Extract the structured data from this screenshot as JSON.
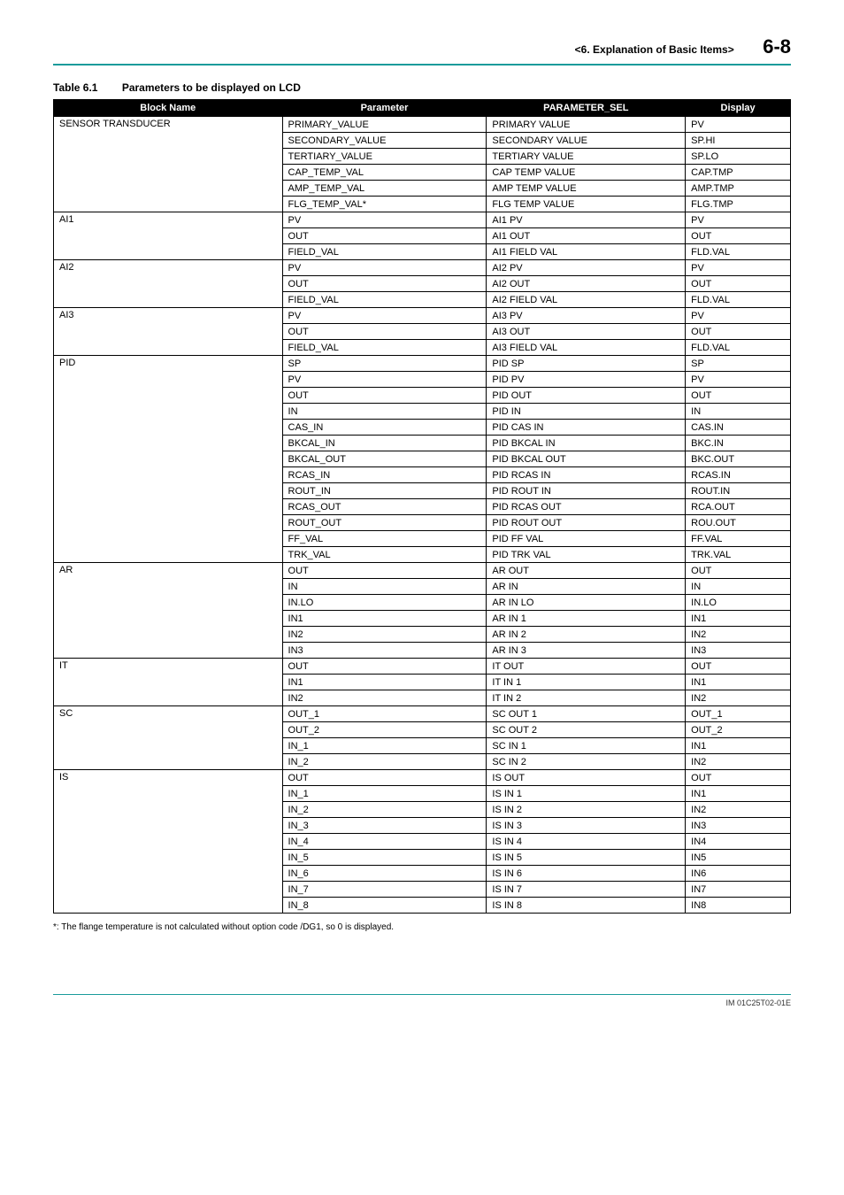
{
  "header": {
    "chapter": "<6.  Explanation of Basic Items>",
    "pageno": "6-8"
  },
  "caption": {
    "number": "Table 6.1",
    "title": "Parameters to be displayed on LCD"
  },
  "columns": [
    "Block Name",
    "Parameter",
    "PARAMETER_SEL",
    "Display"
  ],
  "rows": [
    [
      "SENSOR TRANSDUCER",
      "PRIMARY_VALUE",
      "PRIMARY VALUE",
      "PV"
    ],
    [
      "",
      "SECONDARY_VALUE",
      "SECONDARY VALUE",
      "SP.HI"
    ],
    [
      "",
      "TERTIARY_VALUE",
      "TERTIARY VALUE",
      "SP.LO"
    ],
    [
      "",
      "CAP_TEMP_VAL",
      "CAP TEMP VALUE",
      "CAP.TMP"
    ],
    [
      "",
      "AMP_TEMP_VAL",
      "AMP TEMP VALUE",
      "AMP.TMP"
    ],
    [
      "",
      "FLG_TEMP_VAL*",
      "FLG TEMP VALUE",
      "FLG.TMP"
    ],
    [
      "AI1",
      "PV",
      "AI1 PV",
      "PV"
    ],
    [
      "",
      "OUT",
      "AI1 OUT",
      "OUT"
    ],
    [
      "",
      "FIELD_VAL",
      "AI1 FIELD VAL",
      "FLD.VAL"
    ],
    [
      "AI2",
      "PV",
      "AI2 PV",
      "PV"
    ],
    [
      "",
      "OUT",
      "AI2 OUT",
      "OUT"
    ],
    [
      "",
      "FIELD_VAL",
      "AI2 FIELD VAL",
      "FLD.VAL"
    ],
    [
      "AI3",
      "PV",
      "AI3 PV",
      "PV"
    ],
    [
      "",
      "OUT",
      "AI3 OUT",
      "OUT"
    ],
    [
      "",
      "FIELD_VAL",
      "AI3 FIELD VAL",
      "FLD.VAL"
    ],
    [
      "PID",
      "SP",
      "PID SP",
      "SP"
    ],
    [
      "",
      "PV",
      "PID PV",
      "PV"
    ],
    [
      "",
      "OUT",
      "PID OUT",
      "OUT"
    ],
    [
      "",
      "IN",
      "PID IN",
      "IN"
    ],
    [
      "",
      "CAS_IN",
      "PID CAS IN",
      "CAS.IN"
    ],
    [
      "",
      "BKCAL_IN",
      "PID BKCAL IN",
      "BKC.IN"
    ],
    [
      "",
      "BKCAL_OUT",
      "PID BKCAL OUT",
      "BKC.OUT"
    ],
    [
      "",
      "RCAS_IN",
      "PID RCAS IN",
      "RCAS.IN"
    ],
    [
      "",
      "ROUT_IN",
      "PID ROUT IN",
      "ROUT.IN"
    ],
    [
      "",
      "RCAS_OUT",
      "PID RCAS OUT",
      "RCA.OUT"
    ],
    [
      "",
      "ROUT_OUT",
      "PID ROUT OUT",
      "ROU.OUT"
    ],
    [
      "",
      "FF_VAL",
      "PID FF VAL",
      "FF.VAL"
    ],
    [
      "",
      "TRK_VAL",
      "PID TRK VAL",
      "TRK.VAL"
    ],
    [
      "AR",
      "OUT",
      "AR OUT",
      "OUT"
    ],
    [
      "",
      "IN",
      "AR IN",
      "IN"
    ],
    [
      "",
      "IN.LO",
      "AR IN LO",
      "IN.LO"
    ],
    [
      "",
      "IN1",
      "AR IN 1",
      "IN1"
    ],
    [
      "",
      "IN2",
      "AR IN 2",
      "IN2"
    ],
    [
      "",
      "IN3",
      "AR IN 3",
      "IN3"
    ],
    [
      "IT",
      "OUT",
      "IT OUT",
      "OUT"
    ],
    [
      "",
      "IN1",
      "IT IN 1",
      "IN1"
    ],
    [
      "",
      "IN2",
      "IT IN 2",
      "IN2"
    ],
    [
      "SC",
      "OUT_1",
      "SC OUT 1",
      "OUT_1"
    ],
    [
      "",
      "OUT_2",
      "SC OUT 2",
      "OUT_2"
    ],
    [
      "",
      "IN_1",
      "SC IN 1",
      "IN1"
    ],
    [
      "",
      "IN_2",
      "SC IN 2",
      "IN2"
    ],
    [
      "IS",
      "OUT",
      "IS OUT",
      "OUT"
    ],
    [
      "",
      "IN_1",
      "IS IN 1",
      "IN1"
    ],
    [
      "",
      "IN_2",
      "IS IN 2",
      "IN2"
    ],
    [
      "",
      "IN_3",
      "IS IN 3",
      "IN3"
    ],
    [
      "",
      "IN_4",
      "IS IN 4",
      "IN4"
    ],
    [
      "",
      "IN_5",
      "IS IN 5",
      "IN5"
    ],
    [
      "",
      "IN_6",
      "IS IN 6",
      "IN6"
    ],
    [
      "",
      "IN_7",
      "IS IN 7",
      "IN7"
    ],
    [
      "",
      "IN_8",
      "IS IN 8",
      "IN8"
    ]
  ],
  "groups": [
    {
      "start": 0,
      "span": 6
    },
    {
      "start": 6,
      "span": 3
    },
    {
      "start": 9,
      "span": 3
    },
    {
      "start": 12,
      "span": 3
    },
    {
      "start": 15,
      "span": 13
    },
    {
      "start": 28,
      "span": 6
    },
    {
      "start": 34,
      "span": 3
    },
    {
      "start": 37,
      "span": 4
    },
    {
      "start": 41,
      "span": 9
    }
  ],
  "footnote": "*: The flange temperature is not calculated without option code /DG1, so 0 is displayed.",
  "footer": "IM 01C25T02-01E"
}
